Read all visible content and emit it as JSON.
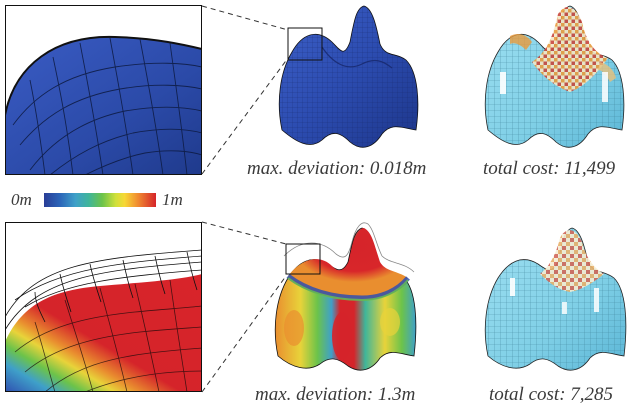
{
  "figure": {
    "top_row": {
      "deviation_caption": "max. deviation: 0.018m",
      "cost_caption": "total cost: 11,499"
    },
    "bottom_row": {
      "deviation_caption": "max. deviation: 1.3m",
      "cost_caption": "total cost: 7,285"
    },
    "colorbar": {
      "min_label": "0m",
      "max_label": "1m",
      "colors": [
        "#2a3d97",
        "#3fa0c9",
        "#6cc34a",
        "#f7d836",
        "#f08a30",
        "#d5242a"
      ]
    },
    "colors": {
      "blue_surface": "#2f4fb0",
      "light_blue_panels": "#7fd0e8",
      "deviation_red": "#d5242a",
      "deviation_yellow": "#e8d33a",
      "cost_orange": "#e89a3c"
    }
  }
}
